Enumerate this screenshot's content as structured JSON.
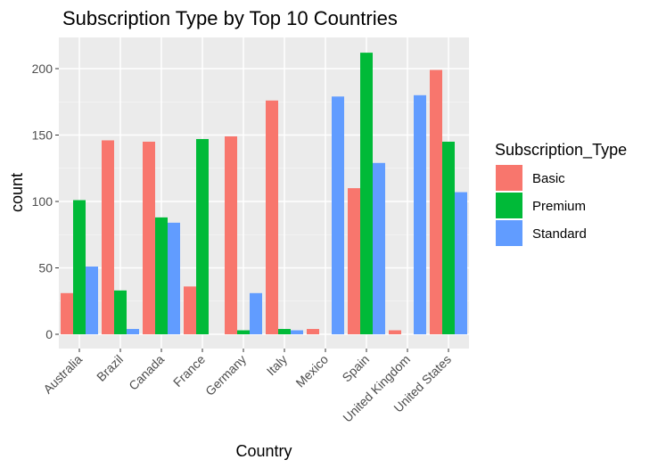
{
  "chart_data": {
    "type": "bar",
    "title": "Subscription Type by Top 10 Countries",
    "xlabel": "Country",
    "ylabel": "count",
    "categories": [
      "Australia",
      "Brazil",
      "Canada",
      "France",
      "Germany",
      "Italy",
      "Mexico",
      "Spain",
      "United Kingdom",
      "United States"
    ],
    "series": [
      {
        "name": "Basic",
        "color": "#F8766D",
        "values": [
          31,
          146,
          145,
          36,
          149,
          176,
          4,
          110,
          3,
          199
        ]
      },
      {
        "name": "Premium",
        "color": "#00BA38",
        "values": [
          101,
          33,
          88,
          147,
          3,
          4,
          0,
          212,
          0,
          145
        ]
      },
      {
        "name": "Standard",
        "color": "#619CFF",
        "values": [
          51,
          4,
          84,
          0,
          31,
          3,
          179,
          129,
          180,
          107
        ]
      }
    ],
    "ylim": [
      0,
      222
    ],
    "yticks": [
      0,
      50,
      100,
      150,
      200
    ],
    "grid": true,
    "legend": {
      "title": "Subscription_Type",
      "placement": "right"
    }
  }
}
